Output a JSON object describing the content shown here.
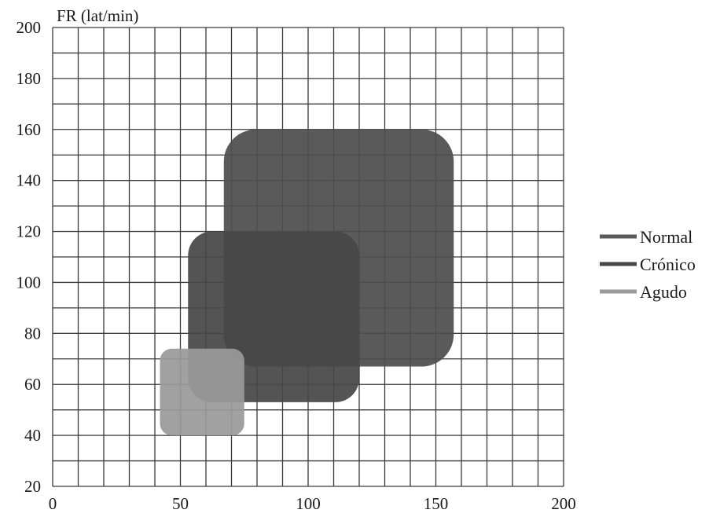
{
  "chart_data": {
    "type": "area",
    "title": "",
    "xlabel": "",
    "ylabel": "FR (lat/min)",
    "xlim": [
      0,
      200
    ],
    "ylim": [
      20,
      200
    ],
    "x_ticks": [
      0,
      50,
      100,
      150,
      200
    ],
    "y_ticks": [
      20,
      40,
      60,
      80,
      100,
      120,
      140,
      160,
      180,
      200
    ],
    "grid": true,
    "x_grid_step": 10,
    "y_grid_step": 10,
    "legend_position": "right",
    "series": [
      {
        "name": "Normal",
        "color": "#4d4d4d",
        "x_range": [
          67,
          157
        ],
        "y_range": [
          67,
          160
        ]
      },
      {
        "name": "Crónico",
        "color": "#474747",
        "x_range": [
          53,
          120
        ],
        "y_range": [
          53,
          120
        ]
      },
      {
        "name": "Agudo",
        "color": "#9a9a9a",
        "x_range": [
          42,
          75
        ],
        "y_range": [
          40,
          74
        ]
      }
    ]
  }
}
